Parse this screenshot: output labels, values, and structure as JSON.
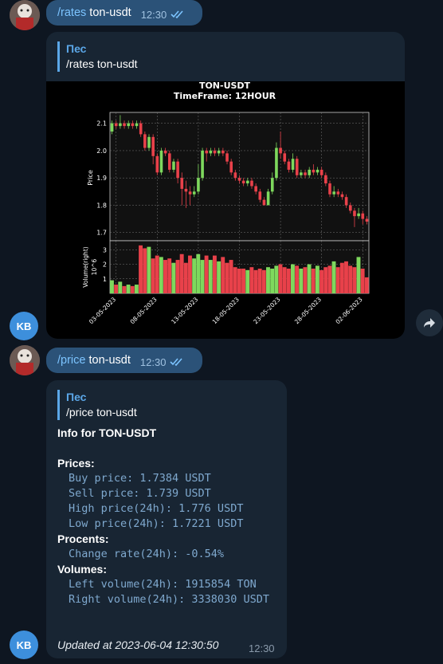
{
  "messages": {
    "first": {
      "command": "/rates",
      "args": " ton-usdt",
      "time": "12:30"
    },
    "chart_reply": {
      "reply_author": "Пес",
      "reply_text": "/rates ton-usdt"
    },
    "second": {
      "command": "/price",
      "args": " ton-usdt",
      "time": "12:30"
    },
    "info_reply": {
      "reply_author": "Пес",
      "reply_text": "/price ton-usdt",
      "title": "Info for TON-USDT",
      "prices_header": "Prices:",
      "buy": "Buy price: 1.7384 USDT",
      "sell": "Sell price: 1.739 USDT",
      "high": "High price(24h): 1.776 USDT",
      "low": "Low price(24h): 1.7221 USDT",
      "procents_header": "Procents:",
      "change": "Change rate(24h): -0.54%",
      "volumes_header": "Volumes:",
      "left_volume": "Left volume(24h): 1915854 TON",
      "right_volume": "Right volume(24h): 3338030 USDT",
      "updated": "Updated at 2023-06-04 12:30:50",
      "time": "12:30"
    }
  },
  "avatars": {
    "kb_initials": "KB"
  },
  "icons": {
    "share": "share-arrow-icon",
    "read": "double-check-icon",
    "avatar": "dog-photo-avatar"
  },
  "colors": {
    "up": "#7ed85d",
    "down": "#e8414a",
    "bubble_out": "#2b5278",
    "bubble_in": "#182533"
  },
  "chart_data": {
    "type": "candlestick",
    "title": "TON-USDT",
    "subtitle": "TimeFrame: 12HOUR",
    "ylabel": "Price",
    "volume_label": "Volume(right)",
    "volume_exponent": "10^6",
    "ylim": [
      1.67,
      2.14
    ],
    "yticks": [
      1.7,
      1.8,
      1.9,
      2.0,
      2.1
    ],
    "volume_ylim": [
      0,
      3.4
    ],
    "volume_yticks": [
      1,
      2,
      3
    ],
    "xtick_labels": [
      "03-05-2023",
      "08-05-2023",
      "13-05-2023",
      "18-05-2023",
      "23-05-2023",
      "28-05-2023",
      "02-06-2023"
    ],
    "xtick_index": [
      1,
      11,
      21,
      31,
      41,
      51,
      61
    ],
    "candles": [
      [
        2.07,
        2.1,
        2.11,
        2.06
      ],
      [
        2.1,
        2.09,
        2.11,
        2.08
      ],
      [
        2.09,
        2.1,
        2.13,
        2.08
      ],
      [
        2.1,
        2.09,
        2.11,
        2.08
      ],
      [
        2.09,
        2.1,
        2.11,
        2.08
      ],
      [
        2.1,
        2.09,
        2.11,
        2.08
      ],
      [
        2.09,
        2.1,
        2.11,
        2.08
      ],
      [
        2.1,
        2.06,
        2.11,
        2.05
      ],
      [
        2.06,
        2.01,
        2.07,
        2.0
      ],
      [
        2.01,
        2.05,
        2.06,
        2.0
      ],
      [
        2.05,
        1.98,
        2.06,
        1.95
      ],
      [
        1.98,
        1.92,
        1.99,
        1.91
      ],
      [
        1.92,
        2.0,
        2.01,
        1.91
      ],
      [
        2.0,
        1.99,
        2.01,
        1.98
      ],
      [
        1.99,
        1.93,
        2.0,
        1.92
      ],
      [
        1.93,
        1.96,
        1.97,
        1.92
      ],
      [
        1.96,
        1.9,
        1.97,
        1.88
      ],
      [
        1.9,
        1.86,
        1.92,
        1.8
      ],
      [
        1.86,
        1.85,
        1.89,
        1.79
      ],
      [
        1.85,
        1.84,
        1.87,
        1.8
      ],
      [
        1.84,
        1.85,
        1.87,
        1.83
      ],
      [
        1.85,
        1.9,
        1.95,
        1.84
      ],
      [
        1.9,
        2.0,
        2.01,
        1.89
      ],
      [
        2.0,
        1.99,
        2.01,
        1.96
      ],
      [
        1.99,
        2.0,
        2.01,
        1.98
      ],
      [
        2.0,
        1.99,
        2.01,
        1.98
      ],
      [
        1.99,
        2.0,
        2.01,
        1.98
      ],
      [
        2.0,
        1.99,
        2.01,
        1.98
      ],
      [
        1.99,
        1.96,
        2.0,
        1.95
      ],
      [
        1.96,
        1.92,
        1.97,
        1.91
      ],
      [
        1.92,
        1.9,
        1.93,
        1.89
      ],
      [
        1.9,
        1.89,
        1.91,
        1.88
      ],
      [
        1.89,
        1.88,
        1.9,
        1.87
      ],
      [
        1.88,
        1.89,
        1.9,
        1.87
      ],
      [
        1.89,
        1.87,
        1.9,
        1.86
      ],
      [
        1.87,
        1.85,
        1.88,
        1.84
      ],
      [
        1.85,
        1.82,
        1.86,
        1.81
      ],
      [
        1.82,
        1.8,
        1.83,
        1.8
      ],
      [
        1.8,
        1.85,
        1.86,
        1.8
      ],
      [
        1.85,
        1.9,
        1.92,
        1.84
      ],
      [
        1.9,
        2.01,
        2.03,
        1.89
      ],
      [
        2.01,
        1.99,
        2.07,
        1.97
      ],
      [
        1.99,
        1.96,
        2.0,
        1.95
      ],
      [
        1.96,
        1.93,
        1.97,
        1.92
      ],
      [
        1.93,
        1.97,
        1.99,
        1.92
      ],
      [
        1.97,
        1.91,
        1.98,
        1.9
      ],
      [
        1.91,
        1.92,
        1.93,
        1.9
      ],
      [
        1.92,
        1.91,
        1.93,
        1.9
      ],
      [
        1.91,
        1.93,
        1.94,
        1.9
      ],
      [
        1.93,
        1.92,
        1.95,
        1.91
      ],
      [
        1.92,
        1.93,
        1.94,
        1.91
      ],
      [
        1.93,
        1.91,
        1.94,
        1.9
      ],
      [
        1.91,
        1.88,
        1.92,
        1.87
      ],
      [
        1.88,
        1.84,
        1.89,
        1.83
      ],
      [
        1.84,
        1.85,
        1.87,
        1.83
      ],
      [
        1.85,
        1.84,
        1.86,
        1.83
      ],
      [
        1.84,
        1.83,
        1.85,
        1.82
      ],
      [
        1.83,
        1.8,
        1.84,
        1.79
      ],
      [
        1.8,
        1.78,
        1.81,
        1.77
      ],
      [
        1.78,
        1.76,
        1.79,
        1.72
      ],
      [
        1.76,
        1.77,
        1.79,
        1.75
      ],
      [
        1.77,
        1.75,
        1.78,
        1.73
      ],
      [
        1.75,
        1.74,
        1.76,
        1.73
      ]
    ],
    "volumes": [
      0.9,
      0.6,
      0.8,
      0.5,
      0.6,
      0.5,
      0.6,
      3.3,
      3.1,
      3.2,
      2.4,
      2.6,
      2.5,
      2.3,
      2.4,
      2.1,
      2.3,
      2.7,
      2.1,
      2.6,
      2.4,
      2.7,
      2.3,
      2.6,
      2.3,
      2.6,
      2.2,
      2.5,
      2.1,
      2.3,
      1.8,
      1.7,
      1.7,
      1.6,
      1.8,
      1.6,
      1.7,
      1.6,
      1.8,
      1.7,
      1.9,
      2.0,
      1.8,
      1.7,
      2.0,
      1.9,
      1.7,
      1.8,
      2.0,
      1.7,
      1.9,
      1.6,
      1.8,
      1.9,
      2.2,
      1.8,
      2.1,
      2.2,
      1.9,
      1.8,
      2.5,
      1.7,
      1.1
    ]
  }
}
